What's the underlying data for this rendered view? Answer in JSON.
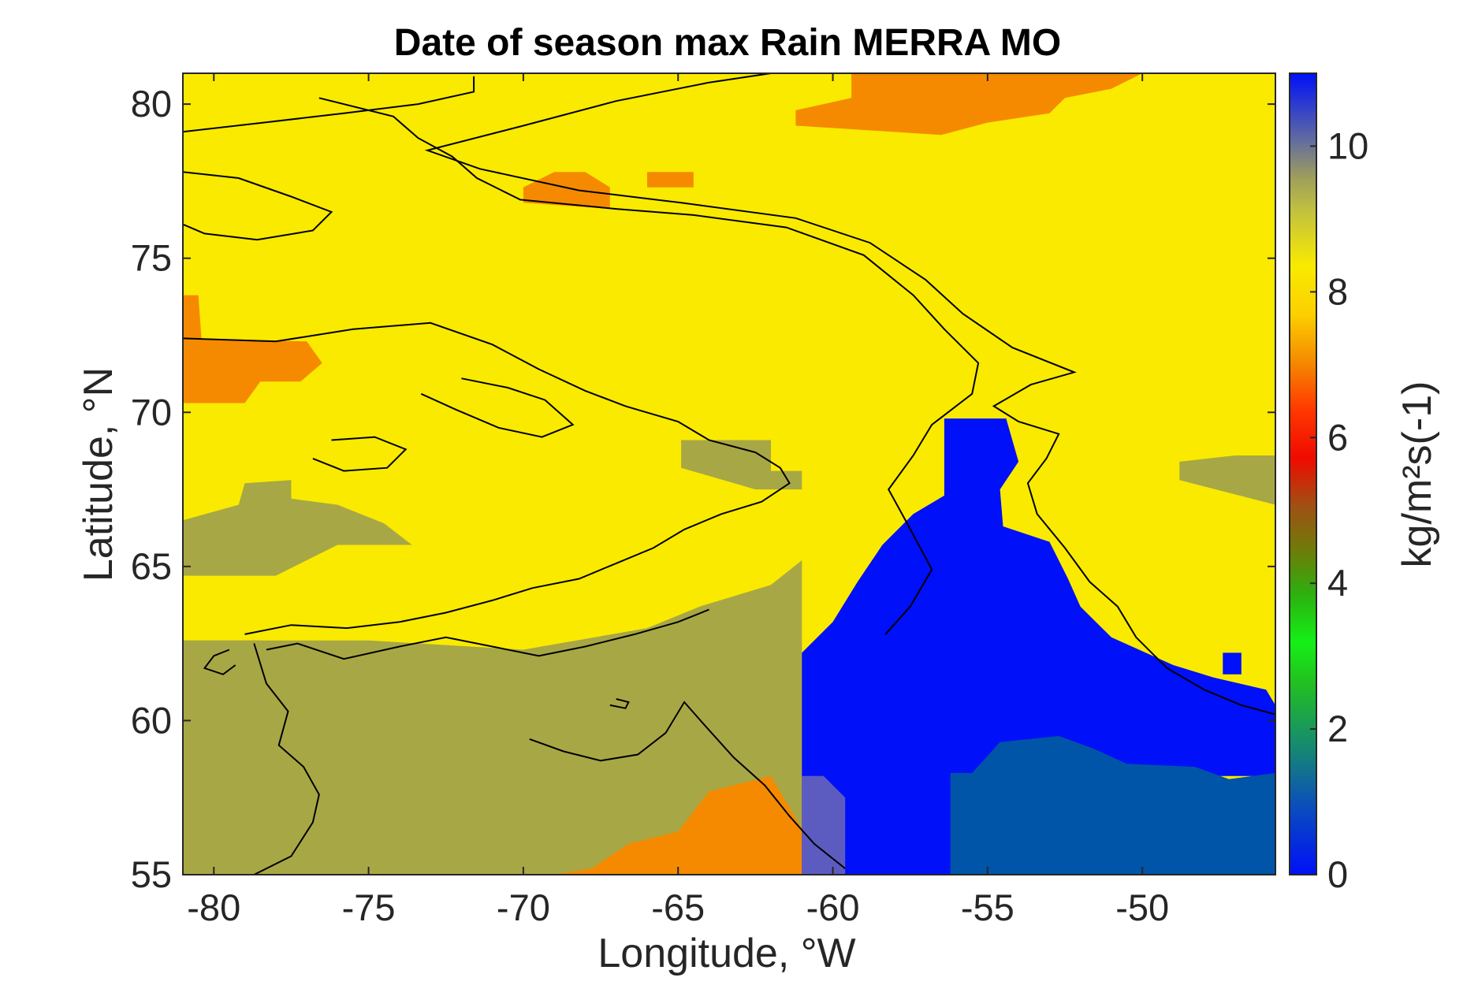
{
  "chart_data": {
    "type": "heatmap",
    "title": "Date of season max Rain MERRA MO",
    "xlabel": "Longitude, °W",
    "ylabel": "Latitude, °N",
    "colorbar_label": "kg/m²s(-1)",
    "xlim": [
      -81,
      -45.7
    ],
    "ylim": [
      55,
      81
    ],
    "xticks": [
      -80,
      -75,
      -70,
      -65,
      -60,
      -55,
      -50
    ],
    "yticks": [
      55,
      60,
      65,
      70,
      75,
      80
    ],
    "clim": [
      0,
      11
    ],
    "cticks": [
      0,
      2,
      4,
      6,
      8,
      10
    ],
    "grid": false,
    "colors": {
      "yellow": "#f9ea00",
      "olive": "#a8a746",
      "orange": "#f58a00",
      "blue": "#0010f8",
      "darkblue": "#0055a8",
      "slate": "#5c5cc0",
      "coastline": "#000000"
    },
    "regions": [
      {
        "name": "background",
        "value": 8.2,
        "color": "yellow"
      },
      {
        "name": "olive south",
        "value": 9.0,
        "color": "olive",
        "poly": [
          [
            -81,
            55
          ],
          [
            -81,
            62.6
          ],
          [
            -75,
            62.6
          ],
          [
            -70,
            62.3
          ],
          [
            -66,
            63
          ],
          [
            -64.3,
            63.7
          ],
          [
            -62,
            64.4
          ],
          [
            -61,
            65.2
          ],
          [
            -61,
            62.1
          ],
          [
            -58,
            61.2
          ],
          [
            -53,
            61
          ],
          [
            -45.7,
            60.5
          ],
          [
            -45.7,
            58.2
          ],
          [
            -61,
            58.2
          ],
          [
            -61,
            55
          ]
        ]
      },
      {
        "name": "olive west",
        "value": 9.0,
        "color": "olive",
        "poly": [
          [
            -81,
            64.7
          ],
          [
            -81,
            66.5
          ],
          [
            -79.2,
            67
          ],
          [
            -79,
            67.7
          ],
          [
            -77.5,
            67.8
          ],
          [
            -77.5,
            67.2
          ],
          [
            -76,
            67
          ],
          [
            -74.5,
            66.4
          ],
          [
            -73.6,
            65.7
          ],
          [
            -76,
            65.7
          ],
          [
            -78,
            64.7
          ]
        ]
      },
      {
        "name": "olive west 2",
        "value": 9.0,
        "color": "olive",
        "poly": [
          [
            -81,
            61.3
          ],
          [
            -81,
            62.6
          ],
          [
            -78.5,
            62.6
          ],
          [
            -77.5,
            62.4
          ],
          [
            -78,
            61.3
          ]
        ]
      },
      {
        "name": "olive center",
        "value": 9.0,
        "color": "olive",
        "poly": [
          [
            -64.9,
            68.2
          ],
          [
            -64.9,
            69.1
          ],
          [
            -62,
            69.1
          ],
          [
            -62,
            68.1
          ],
          [
            -61,
            68.1
          ],
          [
            -61,
            67.5
          ],
          [
            -62.5,
            67.5
          ]
        ]
      },
      {
        "name": "olive east",
        "value": 9.0,
        "color": "olive",
        "poly": [
          [
            -48.8,
            67.8
          ],
          [
            -48.8,
            68.4
          ],
          [
            -47,
            68.6
          ],
          [
            -45.7,
            68.6
          ],
          [
            -45.7,
            67
          ]
        ]
      },
      {
        "name": "orange north",
        "value": 7.0,
        "color": "orange",
        "poly": [
          [
            -59.4,
            81
          ],
          [
            -59.4,
            80.2
          ],
          [
            -61.2,
            79.8
          ],
          [
            -61.2,
            79.3
          ],
          [
            -56.5,
            79
          ],
          [
            -55,
            79.4
          ],
          [
            -53,
            79.7
          ],
          [
            -52.5,
            80.2
          ],
          [
            -51,
            80.5
          ],
          [
            -50,
            81
          ]
        ]
      },
      {
        "name": "orange small",
        "value": 7.0,
        "color": "orange",
        "poly": [
          [
            -70,
            76.8
          ],
          [
            -70,
            77.3
          ],
          [
            -69,
            77.8
          ],
          [
            -68,
            77.8
          ],
          [
            -67.2,
            77.3
          ],
          [
            -67.2,
            76.6
          ]
        ]
      },
      {
        "name": "orange small 2",
        "value": 7.0,
        "color": "orange",
        "poly": [
          [
            -66,
            77.3
          ],
          [
            -66,
            77.8
          ],
          [
            -64.5,
            77.8
          ],
          [
            -64.5,
            77.3
          ]
        ]
      },
      {
        "name": "orange west",
        "value": 7.0,
        "color": "orange",
        "poly": [
          [
            -81,
            70.3
          ],
          [
            -81,
            73.8
          ],
          [
            -80.5,
            73.8
          ],
          [
            -80.4,
            72.4
          ],
          [
            -77,
            72.3
          ],
          [
            -76.5,
            71.6
          ],
          [
            -77.2,
            71
          ],
          [
            -78.5,
            71
          ],
          [
            -79,
            70.3
          ]
        ]
      },
      {
        "name": "orange south",
        "value": 7.0,
        "color": "orange",
        "poly": [
          [
            -69,
            55
          ],
          [
            -67.8,
            55.2
          ],
          [
            -66.6,
            56
          ],
          [
            -65,
            56.4
          ],
          [
            -64,
            57.7
          ],
          [
            -62,
            58.2
          ],
          [
            -60.6,
            55.8
          ],
          [
            -59.5,
            55
          ]
        ]
      },
      {
        "name": "blue sea",
        "value": 0.2,
        "color": "blue",
        "poly": [
          [
            -61,
            55
          ],
          [
            -61,
            62.2
          ],
          [
            -60,
            63.2
          ],
          [
            -59.2,
            64.5
          ],
          [
            -58.4,
            65.7
          ],
          [
            -57.4,
            66.7
          ],
          [
            -56.4,
            67.3
          ],
          [
            -56.4,
            69.8
          ],
          [
            -54.4,
            69.8
          ],
          [
            -54,
            68.4
          ],
          [
            -54.6,
            67.5
          ],
          [
            -54.5,
            66.3
          ],
          [
            -53,
            65.8
          ],
          [
            -52.4,
            64.6
          ],
          [
            -52,
            63.7
          ],
          [
            -51,
            62.7
          ],
          [
            -49,
            61.8
          ],
          [
            -47.7,
            61.4
          ],
          [
            -46,
            61
          ],
          [
            -45.7,
            60.5
          ],
          [
            -45.7,
            58.2
          ],
          [
            -53,
            58.2
          ],
          [
            -53,
            55
          ]
        ]
      },
      {
        "name": "blue small",
        "value": 0.2,
        "color": "blue",
        "poly": [
          [
            -47.4,
            61.5
          ],
          [
            -47.4,
            62.2
          ],
          [
            -46.8,
            62.2
          ],
          [
            -46.8,
            61.5
          ]
        ]
      },
      {
        "name": "darkblue",
        "value": 1.5,
        "color": "darkblue",
        "poly": [
          [
            -56.2,
            55
          ],
          [
            -56.2,
            58.3
          ],
          [
            -55.5,
            58.3
          ],
          [
            -54.6,
            59.3
          ],
          [
            -52.7,
            59.5
          ],
          [
            -51.6,
            59.1
          ],
          [
            -50.5,
            58.6
          ],
          [
            -48.3,
            58.5
          ],
          [
            -47.2,
            58.1
          ],
          [
            -45.7,
            58.3
          ],
          [
            -45.7,
            55
          ]
        ]
      },
      {
        "name": "slate",
        "value": 10.0,
        "color": "slate",
        "poly": [
          [
            -61,
            55
          ],
          [
            -61,
            58.2
          ],
          [
            -60.3,
            58.2
          ],
          [
            -59.6,
            57.5
          ],
          [
            -59.6,
            55
          ]
        ]
      }
    ]
  }
}
